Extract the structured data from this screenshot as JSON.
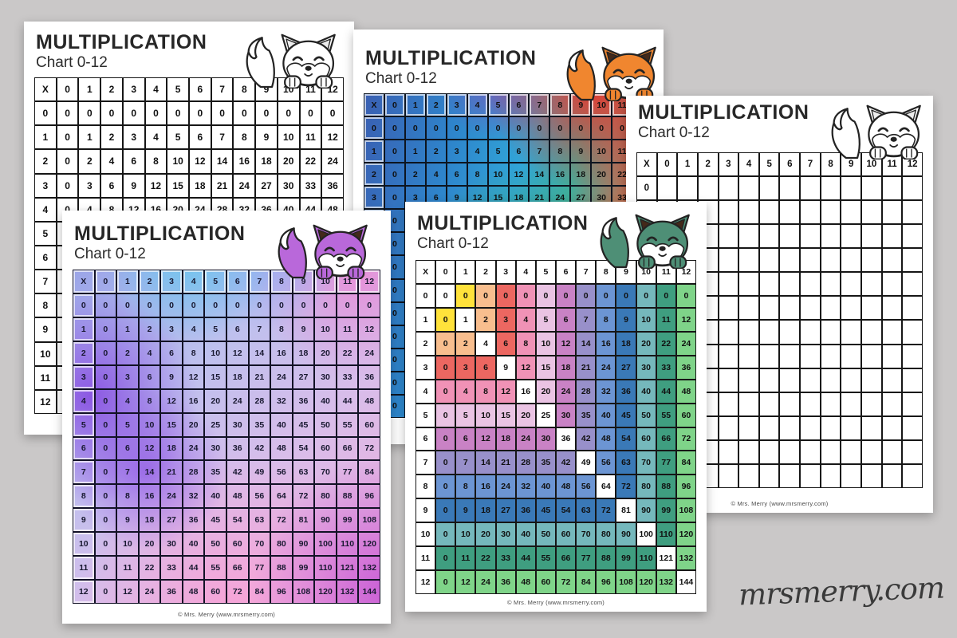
{
  "background_color": "#cac8c8",
  "watermark": {
    "text": "mrsmerry.com",
    "color": "#3a3a3a"
  },
  "shared": {
    "title": "MULTIPLICATION",
    "subtitle": "Chart 0-12",
    "footer": "© Mrs. Merry (www.mrsmerry.com)",
    "header_labels": [
      "X",
      "0",
      "1",
      "2",
      "3",
      "4",
      "5",
      "6",
      "7",
      "8",
      "9",
      "10",
      "11",
      "12"
    ],
    "row_labels": [
      "0",
      "1",
      "2",
      "3",
      "4",
      "5",
      "6",
      "7",
      "8",
      "9",
      "10",
      "11",
      "12"
    ],
    "products": [
      [
        0,
        0,
        0,
        0,
        0,
        0,
        0,
        0,
        0,
        0,
        0,
        0,
        0
      ],
      [
        0,
        1,
        2,
        3,
        4,
        5,
        6,
        7,
        8,
        9,
        10,
        11,
        12
      ],
      [
        0,
        2,
        4,
        6,
        8,
        10,
        12,
        14,
        16,
        18,
        20,
        22,
        24
      ],
      [
        0,
        3,
        6,
        9,
        12,
        15,
        18,
        21,
        24,
        27,
        30,
        33,
        36
      ],
      [
        0,
        4,
        8,
        12,
        16,
        20,
        24,
        28,
        32,
        36,
        40,
        44,
        48
      ],
      [
        0,
        5,
        10,
        15,
        20,
        25,
        30,
        35,
        40,
        45,
        50,
        55,
        60
      ],
      [
        0,
        6,
        12,
        18,
        24,
        30,
        36,
        42,
        48,
        54,
        60,
        66,
        72
      ],
      [
        0,
        7,
        14,
        21,
        28,
        35,
        42,
        49,
        56,
        63,
        70,
        77,
        84
      ],
      [
        0,
        8,
        16,
        24,
        32,
        40,
        48,
        56,
        64,
        72,
        80,
        88,
        96
      ],
      [
        0,
        9,
        18,
        27,
        36,
        45,
        54,
        63,
        72,
        81,
        90,
        99,
        108
      ],
      [
        0,
        10,
        20,
        30,
        40,
        50,
        60,
        70,
        80,
        90,
        100,
        110,
        120
      ],
      [
        0,
        11,
        22,
        33,
        44,
        55,
        66,
        77,
        88,
        99,
        110,
        121,
        132
      ],
      [
        0,
        12,
        24,
        36,
        48,
        60,
        72,
        84,
        96,
        108,
        120,
        132,
        144
      ]
    ]
  },
  "pages": [
    {
      "id": "bw",
      "description": "black-and-white multiplication chart, white fox",
      "variant": "plain",
      "fox": {
        "body": "#FFFFFF",
        "ear": "#EDEDED"
      }
    },
    {
      "id": "rainbow",
      "description": "rainbow gradient multiplication chart, orange fox",
      "variant": "gradient",
      "fox": {
        "body": "#F0862F",
        "ear": "#43291A"
      },
      "palette": [
        "#3A5FB2",
        "#2E86CC",
        "#31A5D8",
        "#3FAE9C",
        "#E8392F",
        "#E8966E",
        "#7658BA"
      ]
    },
    {
      "id": "blank",
      "description": "blank fill-in multiplication chart, white fox",
      "variant": "blank",
      "fox": {
        "body": "#FFFFFF",
        "ear": "#EDEDED"
      },
      "visible_row_labels": [
        "0"
      ]
    },
    {
      "id": "purple",
      "description": "pastel purple-pink gradient multiplication chart, purple fox",
      "variant": "gradient",
      "fox": {
        "body": "#B968DA",
        "ear": "#43291A"
      },
      "palette": [
        "#6CC8EE",
        "#9AA4E8",
        "#8A52E2",
        "#EA8CD6",
        "#F8A2D6",
        "#C85CD6"
      ]
    },
    {
      "id": "green",
      "description": "color-by-factor multiplication chart, green fox",
      "variant": "max-color",
      "fox": {
        "body": "#4E8F76",
        "ear": "#43291A"
      },
      "square_color": "#FFFFFF",
      "level_colors": [
        "#FFFFFF",
        "#FFE23B",
        "#F8BE8E",
        "#EC6761",
        "#F092B6",
        "#EAC3E3",
        "#C982C5",
        "#9890CA",
        "#6C95D3",
        "#3A79B7",
        "#75B8BC",
        "#3F9E80",
        "#7FD489"
      ]
    }
  ]
}
